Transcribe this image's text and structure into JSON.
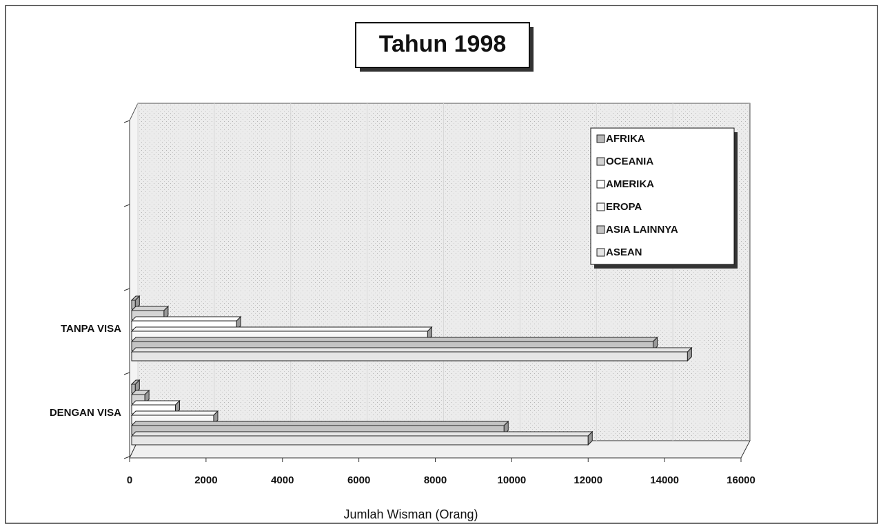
{
  "chart_data": {
    "type": "bar",
    "orientation": "horizontal",
    "three_d": true,
    "title": "Tahun 1998",
    "x_label": "Jumlah Wisman (Orang)",
    "categories": [
      "DENGAN VISA",
      "TANPA VISA"
    ],
    "series": [
      {
        "name": "AFRIKA",
        "color": "#b8b8b8",
        "values": [
          150,
          150
        ]
      },
      {
        "name": "OCEANIA",
        "color": "#d4d4d4",
        "values": [
          400,
          900
        ]
      },
      {
        "name": "AMERIKA",
        "color": "#ffffff",
        "values": [
          1200,
          2800
        ]
      },
      {
        "name": "EROPA",
        "color": "#f7f7f7",
        "values": [
          2200,
          7800
        ]
      },
      {
        "name": "ASIA LAINNYA",
        "color": "#c4c4c4",
        "values": [
          9800,
          13700
        ]
      },
      {
        "name": "ASEAN",
        "color": "#e6e6e6",
        "values": [
          12000,
          14600
        ]
      }
    ],
    "xlim": [
      0,
      16000
    ],
    "xticks": [
      0,
      2000,
      4000,
      6000,
      8000,
      10000,
      12000,
      14000,
      16000
    ],
    "legend": "top-right"
  }
}
